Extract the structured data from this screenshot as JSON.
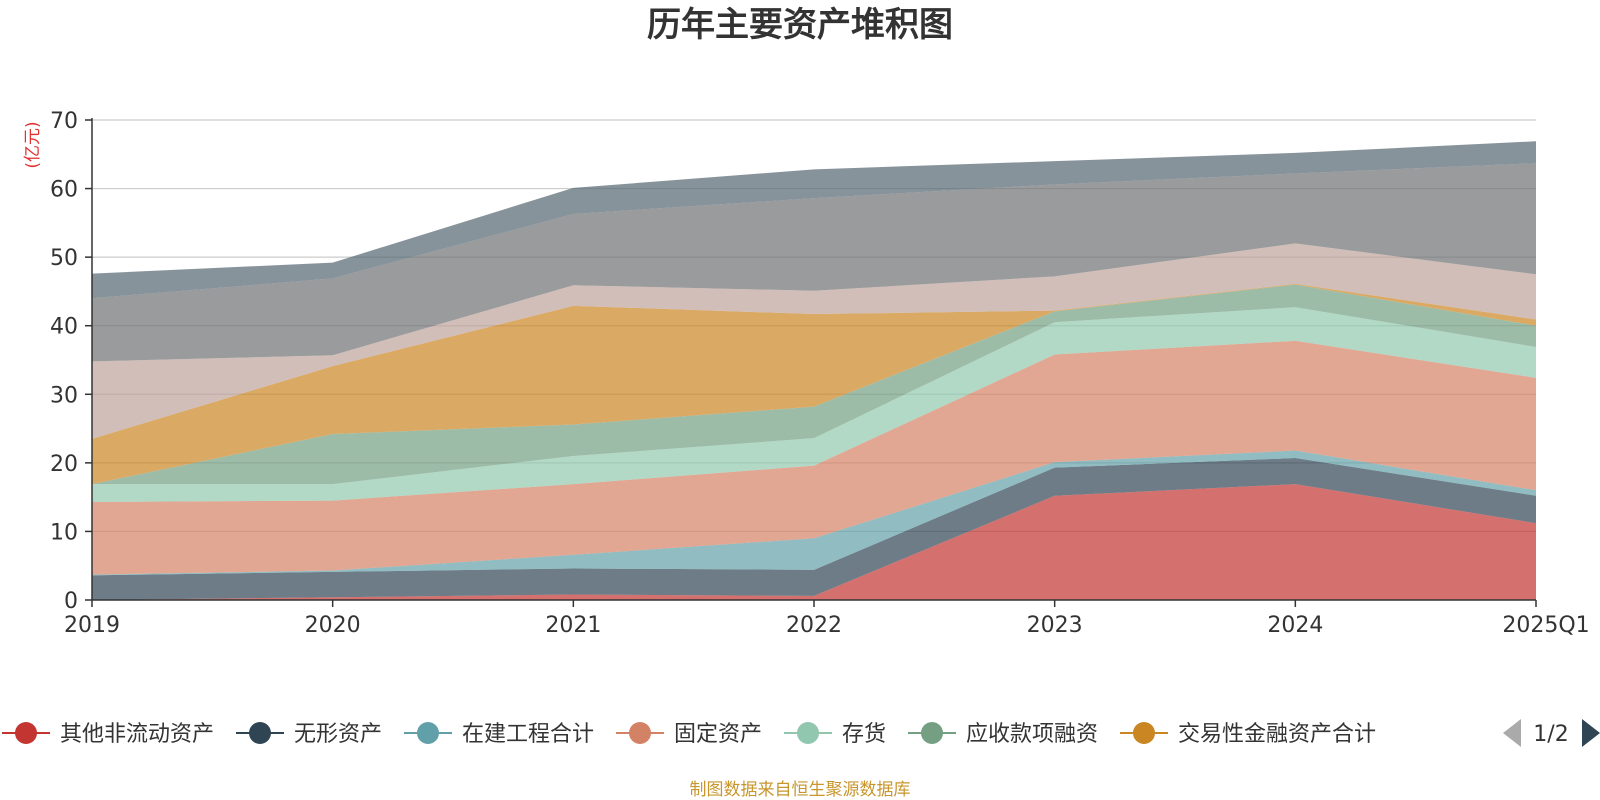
{
  "chart_data": {
    "type": "area",
    "stacked": true,
    "title": "历年主要资产堆积图",
    "ylabel": "(亿元)",
    "xlabel": "",
    "ylim": [
      0,
      70
    ],
    "yticks": [
      0,
      10,
      20,
      30,
      40,
      50,
      60,
      70
    ],
    "grid": true,
    "categories": [
      "2019",
      "2020",
      "2021",
      "2022",
      "2023",
      "2024",
      "2025Q1"
    ],
    "series": [
      {
        "name": "其他非流动资产",
        "color": "#c23531",
        "values": [
          0.0,
          0.4,
          0.8,
          0.6,
          15.2,
          16.9,
          11.2
        ],
        "in_legend": true
      },
      {
        "name": "无形资产",
        "color": "#2f4554",
        "values": [
          3.6,
          3.7,
          3.8,
          3.8,
          4.1,
          3.8,
          4.0
        ],
        "in_legend": true
      },
      {
        "name": "在建工程合计",
        "color": "#61a0a8",
        "values": [
          0.1,
          0.2,
          2.0,
          4.6,
          0.8,
          1.1,
          0.8
        ],
        "in_legend": true
      },
      {
        "name": "固定资产",
        "color": "#d48265",
        "values": [
          10.6,
          10.2,
          10.3,
          10.6,
          15.7,
          16.0,
          16.4
        ],
        "in_legend": true
      },
      {
        "name": "存货",
        "color": "#91c7ae",
        "values": [
          2.6,
          2.4,
          4.1,
          4.0,
          4.7,
          4.9,
          4.5
        ],
        "in_legend": true
      },
      {
        "name": "应收款项融资",
        "color": "#749f83",
        "values": [
          0.0,
          7.3,
          4.6,
          4.6,
          1.6,
          3.3,
          3.1
        ],
        "in_legend": true
      },
      {
        "name": "交易性金融资产合计",
        "color": "#ca8622",
        "values": [
          6.6,
          9.9,
          17.3,
          13.5,
          0.1,
          0.1,
          0.9
        ],
        "in_legend": true
      },
      {
        "name": "系列8",
        "color": "#bda29a",
        "values": [
          11.3,
          1.6,
          3.0,
          3.4,
          5.0,
          5.9,
          6.6
        ],
        "in_legend": false
      },
      {
        "name": "系列9",
        "color": "#6e7074",
        "values": [
          9.2,
          11.2,
          10.4,
          13.5,
          13.4,
          10.2,
          16.2
        ],
        "in_legend": false
      },
      {
        "name": "系列10",
        "color": "#546570",
        "values": [
          3.6,
          2.3,
          3.8,
          4.2,
          3.4,
          3.0,
          3.2
        ],
        "in_legend": false
      }
    ]
  },
  "legend": {
    "page_indicator": "1/2",
    "prev_icon": "triangle-left-icon",
    "next_icon": "triangle-right-icon"
  },
  "footer": {
    "source_text": "制图数据来自恒生聚源数据库"
  },
  "colors": {
    "title": "#333333",
    "axis": "#333333",
    "grid": "#cccccc",
    "ylabel": "#e03030",
    "footer": "#c8962d",
    "pager_active": "#2f4554",
    "pager_inactive": "#aaaaaa"
  }
}
